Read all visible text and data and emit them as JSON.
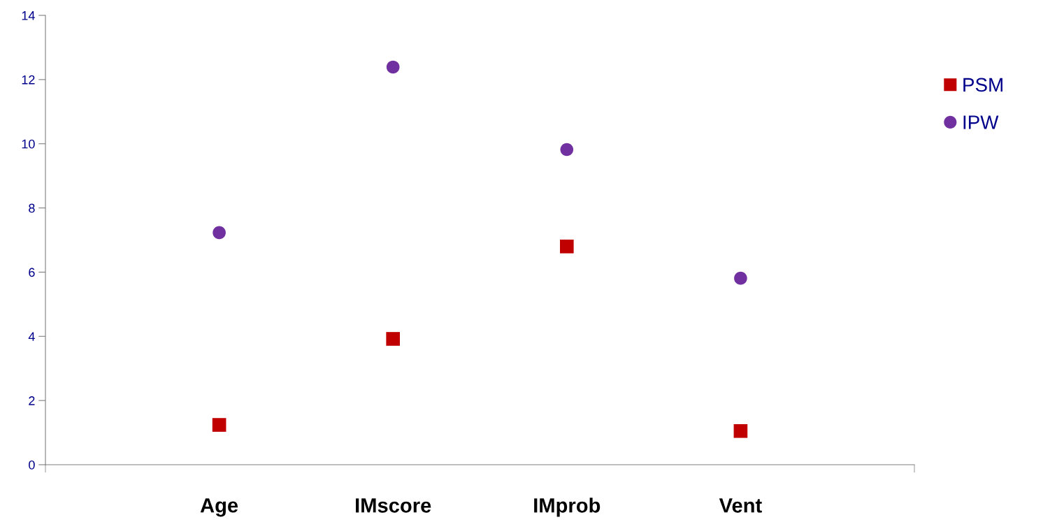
{
  "chart_data": {
    "type": "scatter",
    "categories": [
      "Age",
      "IMscore",
      "IMprob",
      "Vent"
    ],
    "series": [
      {
        "name": "PSM",
        "color": "#c00000",
        "marker": "square",
        "values": [
          1.24,
          3.92,
          6.8,
          1.05
        ]
      },
      {
        "name": "IPW",
        "color": "#7030a0",
        "marker": "circle",
        "values": [
          7.23,
          12.39,
          9.82,
          5.81
        ]
      }
    ],
    "ylim": [
      0,
      14
    ],
    "yticks": [
      0,
      2,
      4,
      6,
      8,
      10,
      12,
      14
    ],
    "grid": false,
    "legend": "right"
  }
}
